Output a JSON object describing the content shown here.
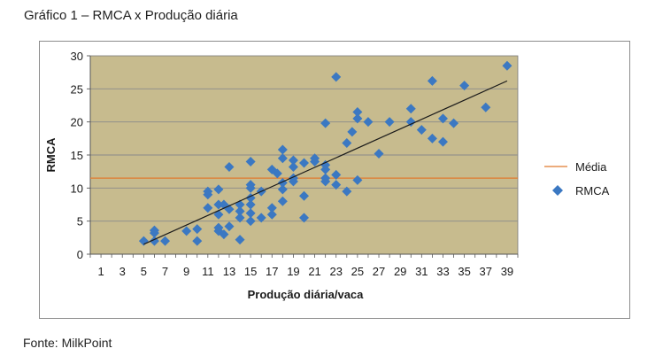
{
  "caption": {
    "title": "Gráfico 1 – RMCA x Produção diária",
    "source": "Fonte: MilkPoint"
  },
  "colors": {
    "plot_background": "#c7bb8e",
    "gridline": "#8a8a8a",
    "points": "#3b78c2",
    "mean_line": "#e07a2e",
    "trend_line": "#1a1a1a"
  },
  "chart_data": {
    "type": "scatter",
    "xlabel": "Produção diária/vaca",
    "ylabel": "RMCA",
    "xlim": [
      0,
      40
    ],
    "ylim": [
      0,
      30
    ],
    "x_ticks": [
      "1",
      "3",
      "5",
      "7",
      "9",
      "11",
      "13",
      "15",
      "17",
      "19",
      "21",
      "23",
      "25",
      "27",
      "29",
      "31",
      "33",
      "35",
      "37",
      "39"
    ],
    "y_ticks": [
      "0",
      "5",
      "10",
      "15",
      "20",
      "25",
      "30"
    ],
    "grid": "horizontal",
    "legend_position": "right",
    "series": [
      {
        "name": "RMCA",
        "marker": "diamond",
        "points": [
          [
            5,
            2
          ],
          [
            6,
            2
          ],
          [
            6,
            3.2
          ],
          [
            6,
            3.6
          ],
          [
            7,
            2
          ],
          [
            9,
            3.5
          ],
          [
            10,
            2
          ],
          [
            10,
            3.8
          ],
          [
            11,
            7
          ],
          [
            11,
            9
          ],
          [
            11,
            9.5
          ],
          [
            12,
            4
          ],
          [
            12,
            3.5
          ],
          [
            12,
            6
          ],
          [
            12,
            7.5
          ],
          [
            12,
            9.8
          ],
          [
            12.5,
            3
          ],
          [
            12.5,
            7.5
          ],
          [
            13,
            4.2
          ],
          [
            13,
            6.8
          ],
          [
            13,
            13.2
          ],
          [
            14,
            2.2
          ],
          [
            14,
            5.5
          ],
          [
            14,
            6.5
          ],
          [
            14,
            7.5
          ],
          [
            15,
            5
          ],
          [
            15,
            6.2
          ],
          [
            15,
            7.5
          ],
          [
            15,
            8.5
          ],
          [
            15,
            10
          ],
          [
            15,
            10.5
          ],
          [
            15,
            14
          ],
          [
            16,
            5.5
          ],
          [
            16,
            9.5
          ],
          [
            17,
            6
          ],
          [
            17,
            7
          ],
          [
            17,
            12.8
          ],
          [
            17.5,
            12.2
          ],
          [
            18,
            8
          ],
          [
            18,
            9.8
          ],
          [
            18,
            10.8
          ],
          [
            18,
            14.5
          ],
          [
            18,
            15.8
          ],
          [
            19,
            11
          ],
          [
            19,
            11.5
          ],
          [
            19,
            13.2
          ],
          [
            19,
            14.2
          ],
          [
            20,
            5.5
          ],
          [
            20,
            8.8
          ],
          [
            20,
            13.8
          ],
          [
            21,
            14
          ],
          [
            21,
            14.5
          ],
          [
            22,
            11
          ],
          [
            22,
            11.5
          ],
          [
            22,
            12.8
          ],
          [
            22,
            13.5
          ],
          [
            22,
            19.8
          ],
          [
            23,
            10.5
          ],
          [
            23,
            12
          ],
          [
            23,
            26.8
          ],
          [
            24,
            9.5
          ],
          [
            24,
            16.8
          ],
          [
            24.5,
            18.5
          ],
          [
            25,
            11.2
          ],
          [
            25,
            20.5
          ],
          [
            25,
            21.5
          ],
          [
            26,
            20
          ],
          [
            27,
            15.2
          ],
          [
            28,
            20
          ],
          [
            30,
            22
          ],
          [
            30,
            20
          ],
          [
            31,
            18.8
          ],
          [
            32,
            17.5
          ],
          [
            32,
            26.2
          ],
          [
            33,
            17
          ],
          [
            33,
            20.5
          ],
          [
            34,
            19.8
          ],
          [
            35,
            25.5
          ],
          [
            37,
            22.2
          ],
          [
            39,
            28.5
          ]
        ]
      },
      {
        "name": "Média",
        "type": "hline",
        "y": 11.5
      }
    ],
    "trendline": {
      "x": [
        5,
        39
      ],
      "y": [
        1.5,
        26.2
      ]
    }
  }
}
